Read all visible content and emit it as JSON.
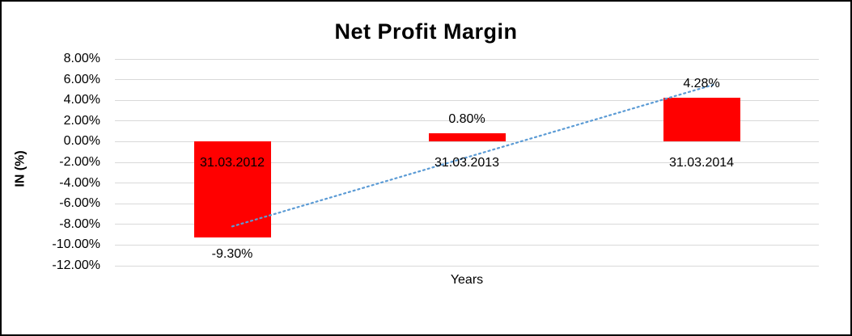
{
  "chart_data": {
    "type": "bar",
    "title": "Net Profit Margin",
    "xlabel": "Years",
    "ylabel": "IN (%)",
    "categories": [
      "31.03.2012",
      "31.03.2013",
      "31.03.2014"
    ],
    "values": [
      -9.3,
      0.8,
      4.28
    ],
    "value_labels": [
      "-9.30%",
      "0.80%",
      "4.28%"
    ],
    "ylim": [
      -12,
      8
    ],
    "yticks": [
      8,
      6,
      4,
      2,
      0,
      -2,
      -4,
      -6,
      -8,
      -10,
      -12
    ],
    "ytick_labels": [
      "8.00%",
      "6.00%",
      "4.00%",
      "2.00%",
      "0.00%",
      "-2.00%",
      "-4.00%",
      "-6.00%",
      "-8.00%",
      "-10.00%",
      "-12.00%"
    ],
    "grid": true,
    "legend": false,
    "bar_color": "#FF0000",
    "trendline": {
      "color": "#5B9BD5",
      "style": "dotted",
      "start": {
        "x_category": 0,
        "value": -8.2
      },
      "end": {
        "x_category": 2.05,
        "value": 5.5
      }
    }
  }
}
